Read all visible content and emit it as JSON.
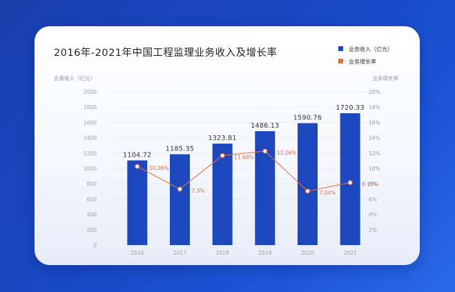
{
  "chart_data": {
    "type": "bar",
    "title": "2016年-2021年中国工程监理业务收入及增长率",
    "categories": [
      "2016",
      "2017",
      "2018",
      "2019",
      "2020",
      "2021"
    ],
    "series": [
      {
        "name": "业务收入（亿元）",
        "type": "bar",
        "axis": "left",
        "values": [
          1104.72,
          1185.35,
          1323.81,
          1486.13,
          1590.76,
          1720.33
        ],
        "labels": [
          "1104.72",
          "1185.35",
          "1323.81",
          "1486.13",
          "1590.76",
          "1720.33"
        ],
        "color": "#1d48bd"
      },
      {
        "name": "业务增长率",
        "type": "line",
        "axis": "right",
        "values": [
          10.26,
          7.3,
          11.68,
          12.26,
          7.04,
          8.15
        ],
        "labels": [
          "10.26%",
          "7.3%",
          "11.68%",
          "12.26%",
          "7.04%",
          "8.15%"
        ],
        "color": "#e8703f"
      }
    ],
    "ylabel": "业务收入（亿元）",
    "y2label": "业务增长率",
    "ylim": [
      0,
      2000
    ],
    "y2lim": [
      0,
      20
    ],
    "yticks": [
      "0",
      "200",
      "400",
      "600",
      "800",
      "1000",
      "1200",
      "1400",
      "1600",
      "1800",
      "2000"
    ],
    "y2ticks": [
      "2%",
      "4%",
      "6%",
      "8%",
      "10%",
      "12%",
      "14%",
      "16%",
      "18%",
      "20%"
    ],
    "legend_position": "top-right"
  }
}
